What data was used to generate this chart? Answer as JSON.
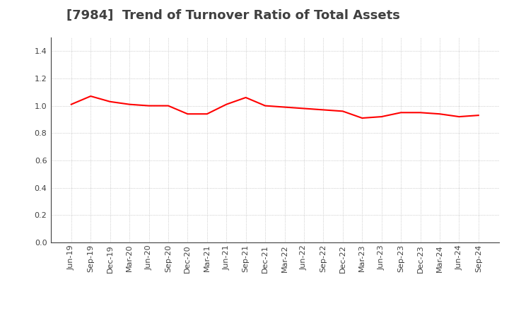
{
  "title": "[7984]  Trend of Turnover Ratio of Total Assets",
  "x_labels": [
    "Jun-19",
    "Sep-19",
    "Dec-19",
    "Mar-20",
    "Jun-20",
    "Sep-20",
    "Dec-20",
    "Mar-21",
    "Jun-21",
    "Sep-21",
    "Dec-21",
    "Mar-22",
    "Jun-22",
    "Sep-22",
    "Dec-22",
    "Mar-23",
    "Jun-23",
    "Sep-23",
    "Dec-23",
    "Mar-24",
    "Jun-24",
    "Sep-24"
  ],
  "values": [
    1.01,
    1.07,
    1.03,
    1.01,
    1.0,
    1.0,
    0.94,
    0.94,
    1.01,
    1.06,
    1.0,
    0.99,
    0.98,
    0.97,
    0.96,
    0.91,
    0.92,
    0.95,
    0.95,
    0.94,
    0.92,
    0.93
  ],
  "line_color": "#ff0000",
  "line_width": 1.5,
  "ylim": [
    0.0,
    1.5
  ],
  "yticks": [
    0.0,
    0.2,
    0.4,
    0.6,
    0.8,
    1.0,
    1.2,
    1.4
  ],
  "background_color": "#ffffff",
  "grid_color": "#999999",
  "title_fontsize": 13,
  "tick_fontsize": 8,
  "title_color": "#404040"
}
